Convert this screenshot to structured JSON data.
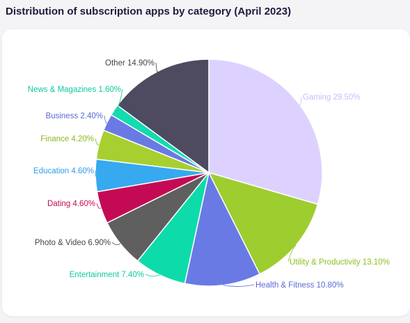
{
  "page": {
    "title": "Distribution of subscription apps by category (April 2023)"
  },
  "chart_data": {
    "type": "pie",
    "title": "Distribution of subscription apps by category (April 2023)",
    "slices": [
      {
        "name": "Gaming",
        "value": 29.5,
        "label": "Gaming 29.50%",
        "color": "#ddd2ff",
        "label_color": "#c9bdfc"
      },
      {
        "name": "Utility & Productivity",
        "value": 13.1,
        "label": "Utility & Productivity 13.10%",
        "color": "#9dcd2f",
        "label_color": "#8cbf1f"
      },
      {
        "name": "Health & Fitness",
        "value": 10.8,
        "label": "Health & Fitness 10.80%",
        "color": "#6a7ae4",
        "label_color": "#5a6ad6"
      },
      {
        "name": "Entertainment",
        "value": 7.4,
        "label": "Entertainment 7.40%",
        "color": "#0ddcaa",
        "label_color": "#10c99d"
      },
      {
        "name": "Photo & Video",
        "value": 6.9,
        "label": "Photo & Video 6.90%",
        "color": "#5f5f5f",
        "label_color": "#444444"
      },
      {
        "name": "Dating",
        "value": 4.6,
        "label": "Dating 4.60%",
        "color": "#c50a55",
        "label_color": "#c50a55"
      },
      {
        "name": "Education",
        "value": 4.6,
        "label": "Education 4.60%",
        "color": "#36a9f0",
        "label_color": "#2e9ee5"
      },
      {
        "name": "Finance",
        "value": 4.2,
        "label": "Finance 4.20%",
        "color": "#a8cf30",
        "label_color": "#8cb81e"
      },
      {
        "name": "Business",
        "value": 2.4,
        "label": "Business 2.40%",
        "color": "#6a7ae4",
        "label_color": "#5a6ad6"
      },
      {
        "name": "News & Magazines",
        "value": 1.6,
        "label": "News & Magazines 1.60%",
        "color": "#12dcb0",
        "label_color": "#10c99d"
      },
      {
        "name": "Other",
        "value": 14.9,
        "label": "Other 14.90%",
        "color": "#4e4a5f",
        "label_color": "#444444"
      }
    ],
    "legend": "none"
  }
}
